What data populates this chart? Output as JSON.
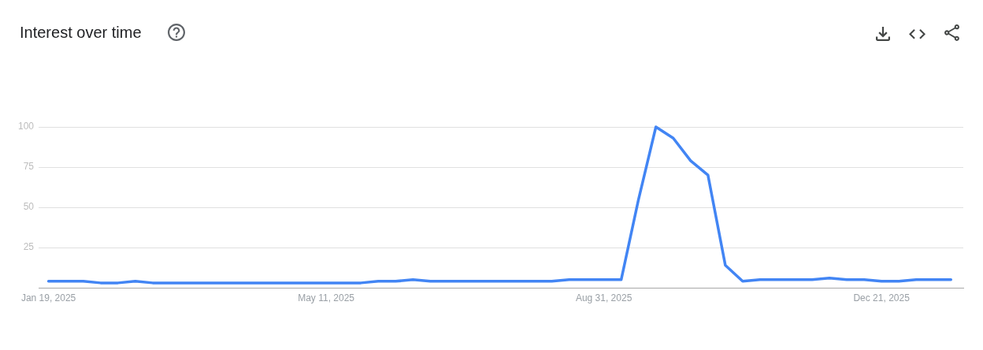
{
  "chart_data": {
    "type": "line",
    "title": "Interest over time",
    "x": [
      "2025-01-19",
      "2025-01-26",
      "2025-02-02",
      "2025-02-09",
      "2025-02-16",
      "2025-02-23",
      "2025-03-02",
      "2025-03-09",
      "2025-03-16",
      "2025-03-23",
      "2025-03-30",
      "2025-04-06",
      "2025-04-13",
      "2025-04-20",
      "2025-04-27",
      "2025-05-04",
      "2025-05-11",
      "2025-05-18",
      "2025-05-25",
      "2025-06-01",
      "2025-06-08",
      "2025-06-15",
      "2025-06-22",
      "2025-06-29",
      "2025-07-06",
      "2025-07-13",
      "2025-07-20",
      "2025-07-27",
      "2025-08-03",
      "2025-08-10",
      "2025-08-17",
      "2025-08-24",
      "2025-08-31",
      "2025-09-07",
      "2025-09-14",
      "2025-09-21",
      "2025-09-28",
      "2025-10-05",
      "2025-10-12",
      "2025-10-19",
      "2025-10-26",
      "2025-11-02",
      "2025-11-09",
      "2025-11-16",
      "2025-11-23",
      "2025-11-30",
      "2025-12-07",
      "2025-12-14",
      "2025-12-21",
      "2025-12-28",
      "2026-01-04",
      "2026-01-11",
      "2026-01-18"
    ],
    "values": [
      4,
      4,
      4,
      3,
      3,
      4,
      3,
      3,
      3,
      3,
      3,
      3,
      3,
      3,
      3,
      3,
      3,
      3,
      3,
      4,
      4,
      5,
      4,
      4,
      4,
      4,
      4,
      4,
      4,
      4,
      5,
      5,
      5,
      5,
      55,
      100,
      93,
      79,
      70,
      14,
      4,
      5,
      5,
      5,
      5,
      6,
      5,
      5,
      4,
      4,
      5,
      5,
      5
    ],
    "color": "#4285f4",
    "xlim": [
      "2025-01-15",
      "2026-01-23"
    ],
    "xticks": [
      {
        "value": "2025-01-19",
        "label": "Jan 19, 2025"
      },
      {
        "value": "2025-05-11",
        "label": "May 11, 2025"
      },
      {
        "value": "2025-08-31",
        "label": "Aug 31, 2025"
      },
      {
        "value": "2025-12-21",
        "label": "Dec 21, 2025"
      }
    ],
    "ylim": [
      0,
      100
    ],
    "yticks": [
      25,
      50,
      75,
      100
    ],
    "grid": "y",
    "marker": "none",
    "line_style": "solid"
  }
}
